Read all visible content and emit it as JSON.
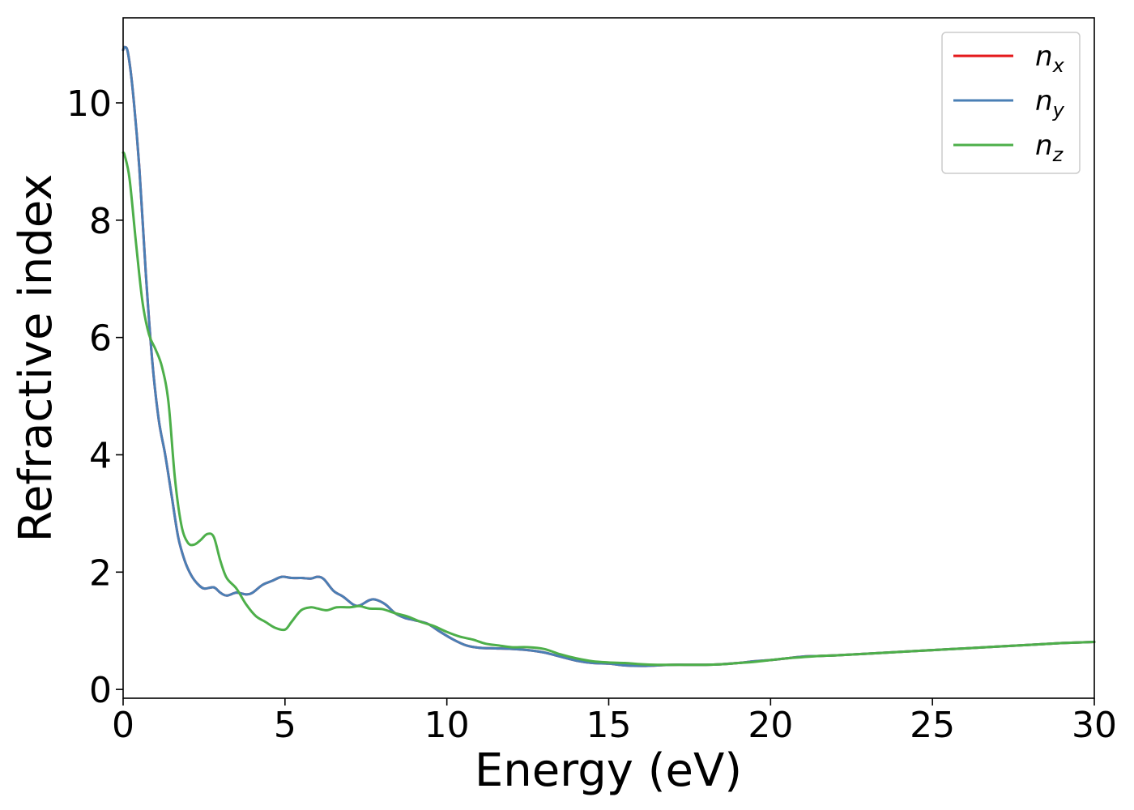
{
  "chart_data": {
    "type": "line",
    "xlabel": "Energy (eV)",
    "ylabel": "Refractive index",
    "xlim": [
      0,
      30
    ],
    "ylim": [
      -0.15,
      11.45
    ],
    "x_ticks": [
      "0",
      "5",
      "10",
      "15",
      "20",
      "25",
      "30"
    ],
    "y_ticks": [
      "0",
      "2",
      "4",
      "6",
      "8",
      "10"
    ],
    "grid": false,
    "legend_placement": "top-right",
    "series": [
      {
        "name": "n",
        "subscript": "x",
        "color": "#e41a1c",
        "x": [
          0,
          0.05,
          0.15,
          0.3,
          0.5,
          0.7,
          0.9,
          1.1,
          1.3,
          1.5,
          1.7,
          1.9,
          2.1,
          2.3,
          2.5,
          2.8,
          3.0,
          3.2,
          3.5,
          3.8,
          4.0,
          4.3,
          4.6,
          4.9,
          5.2,
          5.5,
          5.8,
          6.0,
          6.2,
          6.5,
          6.8,
          7.1,
          7.3,
          7.6,
          7.8,
          8.1,
          8.4,
          8.7,
          9.0,
          9.4,
          9.8,
          10.2,
          10.6,
          11.0,
          11.5,
          12.0,
          12.5,
          13.0,
          13.5,
          14.0,
          14.5,
          15.0,
          15.5,
          16.0,
          16.5,
          17.0,
          17.5,
          18.0,
          18.5,
          19.0,
          19.5,
          20.0,
          20.5,
          21.0,
          21.5,
          22.0,
          23.0,
          24.0,
          25.0,
          26.0,
          27.0,
          28.0,
          29.0,
          30.0
        ],
        "y": [
          10.9,
          10.95,
          10.85,
          10.2,
          8.9,
          7.1,
          5.6,
          4.6,
          4.0,
          3.3,
          2.6,
          2.2,
          1.95,
          1.8,
          1.72,
          1.74,
          1.65,
          1.6,
          1.65,
          1.62,
          1.65,
          1.78,
          1.85,
          1.92,
          1.9,
          1.9,
          1.89,
          1.92,
          1.88,
          1.68,
          1.58,
          1.45,
          1.43,
          1.52,
          1.53,
          1.45,
          1.3,
          1.22,
          1.18,
          1.12,
          0.98,
          0.85,
          0.75,
          0.71,
          0.7,
          0.69,
          0.67,
          0.63,
          0.56,
          0.49,
          0.45,
          0.44,
          0.41,
          0.4,
          0.41,
          0.42,
          0.42,
          0.42,
          0.43,
          0.45,
          0.48,
          0.5,
          0.53,
          0.56,
          0.57,
          0.58,
          0.61,
          0.64,
          0.67,
          0.7,
          0.73,
          0.76,
          0.79,
          0.81
        ]
      },
      {
        "name": "n",
        "subscript": "y",
        "color": "#4a7fb5",
        "x": [
          0,
          0.05,
          0.15,
          0.3,
          0.5,
          0.7,
          0.9,
          1.1,
          1.3,
          1.5,
          1.7,
          1.9,
          2.1,
          2.3,
          2.5,
          2.8,
          3.0,
          3.2,
          3.5,
          3.8,
          4.0,
          4.3,
          4.6,
          4.9,
          5.2,
          5.5,
          5.8,
          6.0,
          6.2,
          6.5,
          6.8,
          7.1,
          7.3,
          7.6,
          7.8,
          8.1,
          8.4,
          8.7,
          9.0,
          9.4,
          9.8,
          10.2,
          10.6,
          11.0,
          11.5,
          12.0,
          12.5,
          13.0,
          13.5,
          14.0,
          14.5,
          15.0,
          15.5,
          16.0,
          16.5,
          17.0,
          17.5,
          18.0,
          18.5,
          19.0,
          19.5,
          20.0,
          20.5,
          21.0,
          21.5,
          22.0,
          23.0,
          24.0,
          25.0,
          26.0,
          27.0,
          28.0,
          29.0,
          30.0
        ],
        "y": [
          10.9,
          10.95,
          10.85,
          10.2,
          8.9,
          7.1,
          5.6,
          4.6,
          4.0,
          3.3,
          2.6,
          2.2,
          1.95,
          1.8,
          1.72,
          1.74,
          1.65,
          1.6,
          1.65,
          1.62,
          1.65,
          1.78,
          1.85,
          1.92,
          1.9,
          1.9,
          1.89,
          1.92,
          1.88,
          1.68,
          1.58,
          1.45,
          1.43,
          1.52,
          1.53,
          1.45,
          1.3,
          1.22,
          1.18,
          1.12,
          0.98,
          0.85,
          0.75,
          0.71,
          0.7,
          0.69,
          0.67,
          0.63,
          0.56,
          0.49,
          0.45,
          0.44,
          0.41,
          0.4,
          0.41,
          0.42,
          0.42,
          0.42,
          0.43,
          0.45,
          0.48,
          0.5,
          0.53,
          0.56,
          0.57,
          0.58,
          0.61,
          0.64,
          0.67,
          0.7,
          0.73,
          0.76,
          0.79,
          0.81
        ]
      },
      {
        "name": "n",
        "subscript": "z",
        "color": "#4daf4a",
        "x": [
          0,
          0.05,
          0.2,
          0.4,
          0.6,
          0.8,
          1.0,
          1.2,
          1.4,
          1.6,
          1.8,
          2.0,
          2.2,
          2.4,
          2.6,
          2.8,
          3.0,
          3.2,
          3.5,
          3.8,
          4.1,
          4.4,
          4.7,
          5.0,
          5.2,
          5.5,
          5.8,
          6.0,
          6.3,
          6.6,
          7.0,
          7.3,
          7.6,
          8.0,
          8.4,
          8.8,
          9.2,
          9.6,
          10.0,
          10.4,
          10.8,
          11.2,
          11.6,
          12.0,
          12.5,
          13.0,
          13.5,
          14.0,
          14.5,
          15.0,
          15.5,
          16.0,
          16.5,
          17.0,
          17.5,
          18.0,
          18.5,
          19.0,
          19.5,
          20.0,
          20.5,
          21.0,
          21.5,
          22.0,
          23.0,
          24.0,
          25.0,
          26.0,
          27.0,
          28.0,
          29.0,
          30.0
        ],
        "y": [
          9.15,
          9.1,
          8.7,
          7.6,
          6.6,
          6.05,
          5.8,
          5.5,
          4.9,
          3.6,
          2.8,
          2.5,
          2.47,
          2.55,
          2.65,
          2.6,
          2.2,
          1.9,
          1.72,
          1.45,
          1.25,
          1.15,
          1.05,
          1.02,
          1.15,
          1.35,
          1.4,
          1.38,
          1.35,
          1.4,
          1.4,
          1.42,
          1.38,
          1.37,
          1.3,
          1.24,
          1.15,
          1.08,
          0.98,
          0.9,
          0.85,
          0.78,
          0.75,
          0.72,
          0.72,
          0.69,
          0.6,
          0.53,
          0.48,
          0.46,
          0.45,
          0.43,
          0.42,
          0.42,
          0.42,
          0.42,
          0.43,
          0.45,
          0.47,
          0.5,
          0.53,
          0.55,
          0.57,
          0.58,
          0.61,
          0.64,
          0.67,
          0.7,
          0.73,
          0.76,
          0.79,
          0.81
        ]
      }
    ]
  }
}
